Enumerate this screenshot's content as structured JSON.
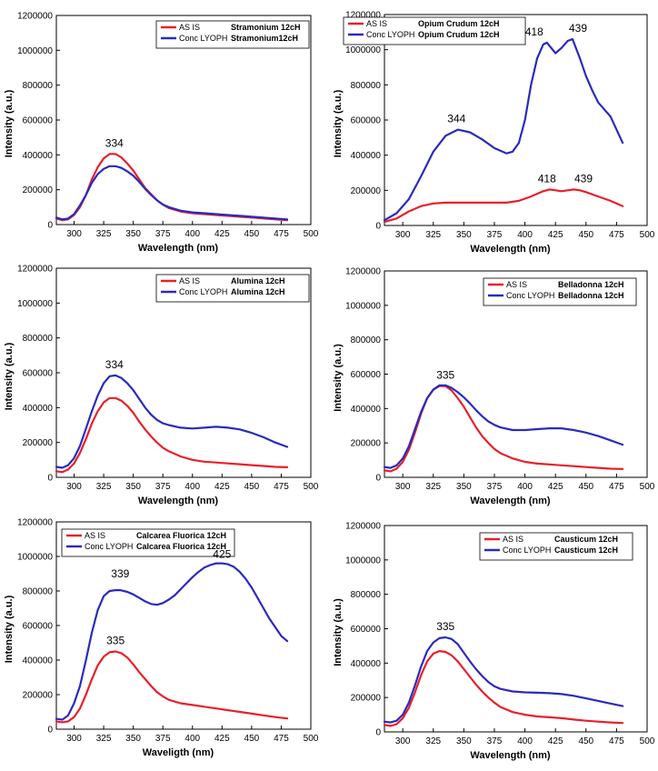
{
  "chart_data": [
    {
      "type": "line",
      "xlabel": "Wavelength (nm)",
      "ylabel": "Intensity (a.u.)",
      "xlim": [
        285,
        500
      ],
      "ylim": [
        0,
        1200000
      ],
      "xticks": [
        "300",
        "325",
        "350",
        "375",
        "400",
        "425",
        "450",
        "475",
        "500"
      ],
      "yticks": [
        "0",
        "200000",
        "400000",
        "600000",
        "800000",
        "1000000",
        "1200000"
      ],
      "legend_position": "top-right",
      "series": [
        {
          "name": "AS IS",
          "tag": "Stramonium 12cH",
          "color": "#e8202a",
          "x": [
            285,
            290,
            295,
            300,
            305,
            310,
            315,
            320,
            325,
            330,
            335,
            340,
            345,
            350,
            355,
            360,
            365,
            370,
            375,
            380,
            385,
            390,
            400,
            410,
            420,
            430,
            440,
            450,
            460,
            470,
            480
          ],
          "y": [
            35000,
            25000,
            30000,
            55000,
            100000,
            170000,
            260000,
            330000,
            380000,
            405000,
            405000,
            385000,
            350000,
            310000,
            260000,
            210000,
            175000,
            140000,
            115000,
            95000,
            85000,
            75000,
            65000,
            60000,
            55000,
            50000,
            45000,
            40000,
            35000,
            30000,
            25000
          ]
        },
        {
          "name": "Conc LYOPH",
          "tag": "Stramonium12cH",
          "color": "#2a2abf",
          "x": [
            285,
            290,
            295,
            300,
            305,
            310,
            315,
            320,
            325,
            330,
            335,
            340,
            345,
            350,
            355,
            360,
            365,
            370,
            375,
            380,
            385,
            390,
            400,
            410,
            420,
            430,
            440,
            450,
            460,
            470,
            480
          ],
          "y": [
            40000,
            30000,
            35000,
            60000,
            110000,
            170000,
            240000,
            290000,
            320000,
            335000,
            335000,
            325000,
            305000,
            280000,
            245000,
            205000,
            170000,
            140000,
            115000,
            100000,
            90000,
            80000,
            70000,
            65000,
            60000,
            55000,
            50000,
            45000,
            40000,
            35000,
            30000
          ]
        }
      ],
      "annotations": [
        "334"
      ]
    },
    {
      "type": "line",
      "xlabel": "Wavelength (nm)",
      "ylabel": "Intensity (a.u.)",
      "xlim": [
        285,
        500
      ],
      "ylim": [
        0,
        1200000
      ],
      "xticks": [
        "300",
        "325",
        "350",
        "375",
        "400",
        "425",
        "450",
        "475",
        "500"
      ],
      "yticks": [
        "0",
        "200000",
        "400000",
        "600000",
        "800000",
        "1000000",
        "1200000"
      ],
      "legend_position": "top-right",
      "series": [
        {
          "name": "AS IS",
          "tag": "Opium Crudum  12cH",
          "color": "#e8202a",
          "x": [
            285,
            295,
            305,
            315,
            325,
            335,
            345,
            355,
            365,
            375,
            385,
            395,
            405,
            415,
            420,
            425,
            430,
            435,
            440,
            445,
            450,
            460,
            470,
            480
          ],
          "y": [
            20000,
            40000,
            80000,
            110000,
            125000,
            130000,
            130000,
            130000,
            130000,
            130000,
            130000,
            140000,
            165000,
            195000,
            205000,
            200000,
            195000,
            200000,
            205000,
            200000,
            190000,
            165000,
            140000,
            110000
          ]
        },
        {
          "name": "Conc LYOPH",
          "tag": "Opium Crudum  12cH",
          "color": "#2a2abf",
          "x": [
            285,
            295,
            305,
            315,
            325,
            335,
            345,
            355,
            365,
            375,
            385,
            390,
            395,
            400,
            405,
            410,
            415,
            418,
            425,
            430,
            435,
            439,
            445,
            450,
            455,
            460,
            470,
            480
          ],
          "y": [
            30000,
            70000,
            150000,
            280000,
            420000,
            510000,
            545000,
            530000,
            490000,
            440000,
            410000,
            420000,
            470000,
            600000,
            800000,
            950000,
            1030000,
            1040000,
            980000,
            1010000,
            1050000,
            1060000,
            950000,
            850000,
            770000,
            700000,
            620000,
            470000
          ]
        }
      ],
      "annotations": [
        "344",
        "418",
        "439",
        "418",
        "439"
      ]
    },
    {
      "type": "line",
      "xlabel": "Wavelength (nm)",
      "ylabel": "Intensity (a.u.)",
      "xlim": [
        285,
        500
      ],
      "ylim": [
        0,
        1200000
      ],
      "xticks": [
        "300",
        "325",
        "350",
        "375",
        "400",
        "425",
        "450",
        "475",
        "500"
      ],
      "yticks": [
        "0",
        "200000",
        "400000",
        "600000",
        "800000",
        "1000000",
        "1200000"
      ],
      "legend_position": "top-right",
      "series": [
        {
          "name": "AS IS",
          "tag": "Alumina  12cH",
          "color": "#e8202a",
          "x": [
            285,
            290,
            295,
            300,
            305,
            310,
            315,
            320,
            325,
            330,
            335,
            340,
            345,
            350,
            355,
            360,
            365,
            370,
            375,
            380,
            390,
            400,
            410,
            420,
            430,
            440,
            450,
            460,
            470,
            480
          ],
          "y": [
            35000,
            30000,
            45000,
            80000,
            140000,
            220000,
            310000,
            380000,
            430000,
            455000,
            455000,
            440000,
            410000,
            370000,
            320000,
            275000,
            235000,
            200000,
            170000,
            150000,
            120000,
            100000,
            90000,
            85000,
            80000,
            75000,
            70000,
            65000,
            60000,
            58000
          ]
        },
        {
          "name": "Conc LYOPH",
          "tag": "Alumina  12cH",
          "color": "#2a2abf",
          "x": [
            285,
            290,
            295,
            300,
            305,
            310,
            315,
            320,
            325,
            330,
            335,
            340,
            345,
            350,
            355,
            360,
            365,
            370,
            375,
            380,
            390,
            400,
            410,
            420,
            430,
            440,
            450,
            460,
            470,
            480
          ],
          "y": [
            60000,
            55000,
            70000,
            110000,
            180000,
            280000,
            380000,
            470000,
            540000,
            580000,
            585000,
            570000,
            540000,
            500000,
            450000,
            400000,
            360000,
            330000,
            310000,
            300000,
            285000,
            280000,
            285000,
            290000,
            285000,
            275000,
            255000,
            230000,
            200000,
            175000
          ]
        }
      ],
      "annotations": [
        "334"
      ]
    },
    {
      "type": "line",
      "xlabel": "Wavelength (nm)",
      "ylabel": "Intensity (a.u.)",
      "xlim": [
        285,
        500
      ],
      "ylim": [
        0,
        1200000
      ],
      "xticks": [
        "300",
        "325",
        "350",
        "375",
        "400",
        "425",
        "450",
        "475",
        "500"
      ],
      "yticks": [
        "0",
        "200000",
        "400000",
        "600000",
        "800000",
        "1000000",
        "1200000"
      ],
      "legend_position": "top-right",
      "series": [
        {
          "name": "AS IS",
          "tag": "Belladonna  12cH",
          "color": "#e8202a",
          "x": [
            285,
            290,
            295,
            300,
            305,
            310,
            315,
            320,
            325,
            330,
            335,
            340,
            345,
            350,
            355,
            360,
            365,
            370,
            375,
            380,
            390,
            400,
            410,
            420,
            430,
            440,
            450,
            460,
            470,
            480
          ],
          "y": [
            40000,
            35000,
            50000,
            90000,
            160000,
            260000,
            370000,
            460000,
            510000,
            530000,
            530000,
            505000,
            460000,
            410000,
            350000,
            290000,
            240000,
            200000,
            165000,
            140000,
            110000,
            90000,
            80000,
            75000,
            70000,
            65000,
            60000,
            55000,
            50000,
            48000
          ]
        },
        {
          "name": "Conc LYOPH",
          "tag": "Belladonna  12cH",
          "color": "#2a2abf",
          "x": [
            285,
            290,
            295,
            300,
            305,
            310,
            315,
            320,
            325,
            330,
            335,
            340,
            345,
            350,
            355,
            360,
            365,
            370,
            375,
            380,
            390,
            400,
            410,
            420,
            430,
            440,
            450,
            460,
            470,
            480
          ],
          "y": [
            60000,
            55000,
            70000,
            110000,
            180000,
            280000,
            380000,
            460000,
            510000,
            535000,
            535000,
            520000,
            495000,
            465000,
            430000,
            390000,
            355000,
            325000,
            305000,
            290000,
            275000,
            275000,
            280000,
            285000,
            285000,
            275000,
            260000,
            240000,
            215000,
            190000
          ]
        }
      ],
      "annotations": [
        "335"
      ]
    },
    {
      "type": "line",
      "xlabel": "Waveligth (nm)",
      "ylabel": "Intensity (a.u.)",
      "xlim": [
        285,
        500
      ],
      "ylim": [
        0,
        1200000
      ],
      "xticks": [
        "300",
        "325",
        "350",
        "375",
        "400",
        "425",
        "450",
        "475",
        "500"
      ],
      "yticks": [
        "0",
        "200000",
        "400000",
        "600000",
        "800000",
        "1000000",
        "1200000"
      ],
      "legend_position": "top-left",
      "series": [
        {
          "name": "AS IS",
          "tag": "Calcarea Fluorica  12cH",
          "color": "#e8202a",
          "x": [
            285,
            290,
            295,
            300,
            305,
            310,
            315,
            320,
            325,
            330,
            335,
            340,
            345,
            350,
            355,
            360,
            365,
            370,
            375,
            380,
            390,
            400,
            410,
            420,
            430,
            440,
            450,
            460,
            470,
            480
          ],
          "y": [
            45000,
            40000,
            45000,
            70000,
            120000,
            200000,
            290000,
            370000,
            420000,
            445000,
            450000,
            440000,
            415000,
            375000,
            330000,
            290000,
            250000,
            215000,
            190000,
            170000,
            150000,
            140000,
            130000,
            120000,
            110000,
            100000,
            90000,
            80000,
            70000,
            62000
          ]
        },
        {
          "name": "Conc LYOPH",
          "tag": "Calcarea Fluorica  12cH",
          "color": "#2a2abf",
          "x": [
            285,
            290,
            295,
            300,
            305,
            310,
            315,
            320,
            325,
            330,
            335,
            339,
            345,
            350,
            355,
            360,
            365,
            370,
            375,
            380,
            385,
            390,
            395,
            400,
            405,
            410,
            415,
            420,
            425,
            430,
            435,
            440,
            445,
            450,
            455,
            460,
            465,
            470,
            475,
            480
          ],
          "y": [
            60000,
            55000,
            80000,
            150000,
            250000,
            400000,
            560000,
            690000,
            770000,
            800000,
            805000,
            805000,
            795000,
            780000,
            760000,
            740000,
            725000,
            720000,
            730000,
            750000,
            775000,
            810000,
            845000,
            880000,
            910000,
            935000,
            950000,
            960000,
            960000,
            955000,
            940000,
            910000,
            870000,
            820000,
            760000,
            700000,
            640000,
            590000,
            540000,
            510000
          ]
        }
      ],
      "annotations": [
        "339",
        "425",
        "335"
      ]
    },
    {
      "type": "line",
      "xlabel": "Wavelength (nm)",
      "ylabel": "Intensity (a.u.)",
      "xlim": [
        285,
        500
      ],
      "ylim": [
        0,
        1200000
      ],
      "xticks": [
        "300",
        "325",
        "350",
        "375",
        "400",
        "425",
        "450",
        "475",
        "500"
      ],
      "yticks": [
        "0",
        "200000",
        "400000",
        "600000",
        "800000",
        "1000000",
        "1200000"
      ],
      "legend_position": "top-right",
      "series": [
        {
          "name": "AS IS",
          "tag": "Causticum  12cH",
          "color": "#e8202a",
          "x": [
            285,
            290,
            295,
            300,
            305,
            310,
            315,
            320,
            325,
            330,
            335,
            340,
            345,
            350,
            355,
            360,
            365,
            370,
            375,
            380,
            390,
            400,
            410,
            420,
            430,
            440,
            450,
            460,
            470,
            480
          ],
          "y": [
            40000,
            35000,
            45000,
            80000,
            140000,
            230000,
            330000,
            410000,
            455000,
            470000,
            465000,
            445000,
            410000,
            365000,
            320000,
            275000,
            235000,
            200000,
            170000,
            145000,
            115000,
            100000,
            90000,
            85000,
            80000,
            72000,
            65000,
            60000,
            55000,
            52000
          ]
        },
        {
          "name": "Conc LYOPH",
          "tag": "Causticum  12cH",
          "color": "#2a2abf",
          "x": [
            285,
            290,
            295,
            300,
            305,
            310,
            315,
            320,
            325,
            330,
            335,
            340,
            345,
            350,
            355,
            360,
            365,
            370,
            375,
            380,
            390,
            400,
            410,
            420,
            430,
            440,
            450,
            460,
            470,
            480
          ],
          "y": [
            60000,
            55000,
            65000,
            100000,
            170000,
            270000,
            380000,
            470000,
            520000,
            545000,
            550000,
            540000,
            510000,
            460000,
            410000,
            365000,
            325000,
            290000,
            265000,
            250000,
            235000,
            230000,
            228000,
            225000,
            220000,
            210000,
            195000,
            180000,
            165000,
            150000
          ]
        }
      ],
      "annotations": [
        "335"
      ]
    }
  ]
}
